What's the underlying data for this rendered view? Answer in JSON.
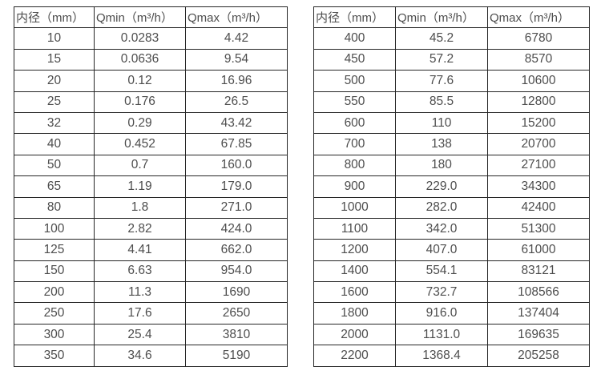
{
  "page": {
    "background_color": "#ffffff",
    "text_color": "#4d4d4d",
    "border_color": "#262626"
  },
  "tables": [
    {
      "title": "flow-table-small-diameters",
      "headers": [
        "内径（mm）",
        "Qmin（m³/h）",
        "Qmax（m³/h）"
      ],
      "rows": [
        [
          "10",
          "0.0283",
          "4.42"
        ],
        [
          "15",
          "0.0636",
          "9.54"
        ],
        [
          "20",
          "0.12",
          "16.96"
        ],
        [
          "25",
          "0.176",
          "26.5"
        ],
        [
          "32",
          "0.29",
          "43.42"
        ],
        [
          "40",
          "0.452",
          "67.85"
        ],
        [
          "50",
          "0.7",
          "160.0"
        ],
        [
          "65",
          "1.19",
          "179.0"
        ],
        [
          "80",
          "1.8",
          "271.0"
        ],
        [
          "100",
          "2.82",
          "424.0"
        ],
        [
          "125",
          "4.41",
          "662.0"
        ],
        [
          "150",
          "6.63",
          "954.0"
        ],
        [
          "200",
          "11.3",
          "1690"
        ],
        [
          "250",
          "17.6",
          "2650"
        ],
        [
          "300",
          "25.4",
          "3810"
        ],
        [
          "350",
          "34.6",
          "5190"
        ]
      ]
    },
    {
      "title": "flow-table-large-diameters",
      "headers": [
        "内径（mm）",
        "Qmin（m³/h）",
        "Qmax（m³/h）"
      ],
      "rows": [
        [
          "400",
          "45.2",
          "6780"
        ],
        [
          "450",
          "57.2",
          "8570"
        ],
        [
          "500",
          "77.6",
          "10600"
        ],
        [
          "550",
          "85.5",
          "12800"
        ],
        [
          "600",
          "110",
          "15200"
        ],
        [
          "700",
          "138",
          "20700"
        ],
        [
          "800",
          "180",
          "27100"
        ],
        [
          "900",
          "229.0",
          "34300"
        ],
        [
          "1000",
          "282.0",
          "42400"
        ],
        [
          "1100",
          "342.0",
          "51300"
        ],
        [
          "1200",
          "407.0",
          "61000"
        ],
        [
          "1400",
          "554.1",
          "83121"
        ],
        [
          "1600",
          "732.7",
          "108566"
        ],
        [
          "1800",
          "916.0",
          "137404"
        ],
        [
          "2000",
          "1131.0",
          "169635"
        ],
        [
          "2200",
          "1368.4",
          "205258"
        ]
      ]
    }
  ]
}
